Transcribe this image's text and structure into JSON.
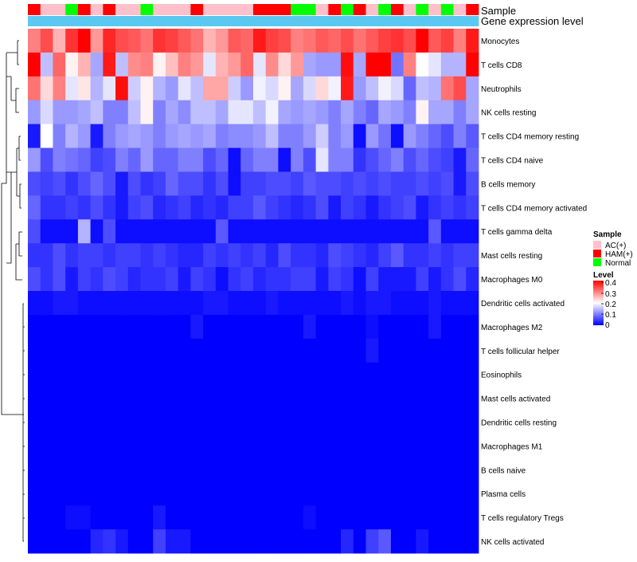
{
  "chart_data": {
    "type": "heatmap",
    "title": "",
    "annotation_labels": [
      "Sample",
      "Gene expression level"
    ],
    "legend": {
      "sample_title": "Sample",
      "sample_entries": [
        {
          "label": "AC(+)",
          "color": "#FFC0CB"
        },
        {
          "label": "HAM(+)",
          "color": "#FF0000"
        },
        {
          "label": "Normal",
          "color": "#00FF00"
        }
      ],
      "level_title": "Level",
      "level_ticks": [
        "0.4",
        "0.3",
        "0.2",
        "0.1",
        "0"
      ],
      "level_range": [
        0,
        0.4
      ],
      "colors": {
        "low": "#0000FF",
        "mid": "#FFFFFF",
        "high": "#FF0000",
        "expression_bar": "#5BC8F2"
      }
    },
    "sample_groups": [
      "HAM(+)",
      "AC(+)",
      "AC(+)",
      "Normal",
      "HAM(+)",
      "AC(+)",
      "HAM(+)",
      "AC(+)",
      "AC(+)",
      "Normal",
      "AC(+)",
      "AC(+)",
      "AC(+)",
      "HAM(+)",
      "AC(+)",
      "AC(+)",
      "AC(+)",
      "AC(+)",
      "HAM(+)",
      "HAM(+)",
      "HAM(+)",
      "Normal",
      "Normal",
      "AC(+)",
      "HAM(+)",
      "Normal",
      "HAM(+)",
      "AC(+)",
      "Normal",
      "HAM(+)",
      "AC(+)",
      "Normal",
      "AC(+)",
      "Normal",
      "AC(+)",
      "HAM(+)"
    ],
    "expression_levels": [
      1,
      1,
      1,
      1,
      1,
      1,
      1,
      1,
      1,
      1,
      1,
      1,
      1,
      1,
      1,
      1,
      1,
      1,
      1,
      1,
      1,
      1,
      1,
      1,
      1,
      1,
      1,
      1,
      1,
      1,
      1,
      1,
      1,
      1,
      1,
      1
    ],
    "rows": [
      {
        "label": "Monocytes",
        "values": [
          0.3,
          0.34,
          0.26,
          0.36,
          0.4,
          0.28,
          0.37,
          0.34,
          0.33,
          0.31,
          0.36,
          0.35,
          0.33,
          0.31,
          0.26,
          0.28,
          0.33,
          0.32,
          0.38,
          0.35,
          0.34,
          0.3,
          0.31,
          0.33,
          0.32,
          0.34,
          0.31,
          0.33,
          0.35,
          0.36,
          0.34,
          0.4,
          0.33,
          0.35,
          0.3,
          0.38
        ]
      },
      {
        "label": "T cells CD8",
        "values": [
          0.4,
          0.15,
          0.32,
          0.21,
          0.26,
          0.13,
          0.38,
          0.15,
          0.29,
          0.3,
          0.21,
          0.25,
          0.3,
          0.28,
          0.18,
          0.26,
          0.28,
          0.32,
          0.18,
          0.29,
          0.23,
          0.28,
          0.13,
          0.12,
          0.12,
          0.39,
          0.13,
          0.4,
          0.4,
          0.09,
          0.3,
          0.2,
          0.18,
          0.14,
          0.14,
          0.4
        ]
      },
      {
        "label": "Neutrophils",
        "values": [
          0.31,
          0.23,
          0.3,
          0.18,
          0.22,
          0.14,
          0.18,
          0.39,
          0.16,
          0.21,
          0.14,
          0.12,
          0.18,
          0.15,
          0.27,
          0.27,
          0.16,
          0.12,
          0.19,
          0.17,
          0.21,
          0.13,
          0.17,
          0.23,
          0.19,
          0.38,
          0.12,
          0.15,
          0.19,
          0.17,
          0.08,
          0.15,
          0.14,
          0.31,
          0.34,
          0.13
        ]
      },
      {
        "label": "NK cells resting",
        "values": [
          0.12,
          0.17,
          0.12,
          0.12,
          0.13,
          0.15,
          0.1,
          0.1,
          0.15,
          0.21,
          0.1,
          0.13,
          0.11,
          0.15,
          0.15,
          0.13,
          0.18,
          0.18,
          0.15,
          0.19,
          0.13,
          0.12,
          0.13,
          0.12,
          0.1,
          0.13,
          0.1,
          0.08,
          0.13,
          0.12,
          0.1,
          0.21,
          0.13,
          0.13,
          0.1,
          0.13
        ]
      },
      {
        "label": "T cells CD4 memory resting",
        "values": [
          0.02,
          0.2,
          0.1,
          0.14,
          0.12,
          0.02,
          0.1,
          0.12,
          0.13,
          0.12,
          0.1,
          0.12,
          0.13,
          0.12,
          0.13,
          0.1,
          0.11,
          0.11,
          0.12,
          0.15,
          0.1,
          0.1,
          0.12,
          0.16,
          0.1,
          0.12,
          0.01,
          0.12,
          0.09,
          0.01,
          0.12,
          0.1,
          0.08,
          0.06,
          0.1,
          0.07
        ]
      },
      {
        "label": "T cells CD4 naive",
        "values": [
          0.12,
          0.06,
          0.1,
          0.09,
          0.08,
          0.05,
          0.06,
          0.1,
          0.08,
          0.12,
          0.08,
          0.08,
          0.1,
          0.1,
          0.06,
          0.08,
          0.01,
          0.08,
          0.1,
          0.1,
          0.01,
          0.1,
          0.06,
          0.18,
          0.1,
          0.1,
          0.04,
          0.06,
          0.08,
          0.1,
          0.06,
          0.08,
          0.06,
          0.05,
          0.02,
          0.08
        ]
      },
      {
        "label": "B cells memory",
        "values": [
          0.06,
          0.05,
          0.06,
          0.04,
          0.06,
          0.08,
          0.06,
          0.02,
          0.06,
          0.04,
          0.05,
          0.08,
          0.06,
          0.06,
          0.04,
          0.06,
          0.01,
          0.05,
          0.05,
          0.06,
          0.06,
          0.05,
          0.07,
          0.06,
          0.06,
          0.05,
          0.06,
          0.05,
          0.06,
          0.05,
          0.05,
          0.06,
          0.05,
          0.06,
          0.02,
          0.06
        ]
      },
      {
        "label": "T cells CD4 memory activated",
        "values": [
          0.08,
          0.04,
          0.04,
          0.05,
          0.04,
          0.06,
          0.04,
          0.02,
          0.05,
          0.06,
          0.03,
          0.04,
          0.05,
          0.03,
          0.04,
          0.03,
          0.05,
          0.05,
          0.07,
          0.05,
          0.04,
          0.03,
          0.04,
          0.06,
          0.02,
          0.05,
          0.04,
          0.02,
          0.04,
          0.05,
          0.06,
          0.02,
          0.04,
          0.05,
          0.04,
          0.05
        ]
      },
      {
        "label": "T cells gamma delta",
        "values": [
          0.06,
          0.01,
          0.01,
          0.01,
          0.14,
          0.01,
          0.06,
          0.01,
          0.01,
          0.01,
          0.01,
          0.01,
          0.01,
          0.01,
          0.01,
          0.07,
          0.01,
          0.01,
          0.01,
          0.01,
          0.01,
          0.01,
          0.01,
          0.01,
          0.01,
          0.01,
          0.01,
          0.01,
          0.01,
          0.01,
          0.01,
          0.01,
          0.07,
          0.01,
          0.01,
          0.01
        ]
      },
      {
        "label": "Mast cells resting",
        "values": [
          0.04,
          0.04,
          0.06,
          0.04,
          0.05,
          0.05,
          0.04,
          0.05,
          0.05,
          0.04,
          0.05,
          0.04,
          0.03,
          0.03,
          0.05,
          0.04,
          0.05,
          0.04,
          0.05,
          0.03,
          0.06,
          0.04,
          0.04,
          0.03,
          0.06,
          0.05,
          0.04,
          0.03,
          0.05,
          0.07,
          0.04,
          0.04,
          0.05,
          0.04,
          0.05,
          0.05
        ]
      },
      {
        "label": "Macrophages M0",
        "values": [
          0.06,
          0.04,
          0.06,
          0.02,
          0.05,
          0.04,
          0.06,
          0.05,
          0.03,
          0.04,
          0.04,
          0.05,
          0.02,
          0.05,
          0.04,
          0.01,
          0.04,
          0.05,
          0.03,
          0.04,
          0.04,
          0.05,
          0.05,
          0.02,
          0.05,
          0.04,
          0.01,
          0.05,
          0.02,
          0.02,
          0.02,
          0.05,
          0.02,
          0.04,
          0.06,
          0.03
        ]
      },
      {
        "label": "Dendritic cells activated",
        "values": [
          0.01,
          0.01,
          0.02,
          0.02,
          0.01,
          0.01,
          0.01,
          0.01,
          0.01,
          0.01,
          0.01,
          0.01,
          0.01,
          0.01,
          0.02,
          0.02,
          0.01,
          0.01,
          0.01,
          0.02,
          0.01,
          0.01,
          0.01,
          0.01,
          0.01,
          0.02,
          0.01,
          0.02,
          0.02,
          0.01,
          0.01,
          0.01,
          0.02,
          0.01,
          0.01,
          0.01
        ]
      },
      {
        "label": "Macrophages M2",
        "values": [
          0.0,
          0.0,
          0.0,
          0.0,
          0.0,
          0.0,
          0.0,
          0.0,
          0.0,
          0.0,
          0.0,
          0.0,
          0.0,
          0.02,
          0.0,
          0.0,
          0.0,
          0.0,
          0.0,
          0.0,
          0.0,
          0.0,
          0.02,
          0.0,
          0.0,
          0.0,
          0.0,
          0.01,
          0.0,
          0.0,
          0.0,
          0.0,
          0.02,
          0.0,
          0.0,
          0.0
        ]
      },
      {
        "label": "T cells follicular helper",
        "values": [
          0.0,
          0.0,
          0.0,
          0.0,
          0.0,
          0.0,
          0.0,
          0.0,
          0.0,
          0.0,
          0.0,
          0.0,
          0.0,
          0.0,
          0.0,
          0.0,
          0.0,
          0.0,
          0.0,
          0.0,
          0.0,
          0.0,
          0.0,
          0.0,
          0.0,
          0.0,
          0.0,
          0.02,
          0.0,
          0.0,
          0.0,
          0.0,
          0.0,
          0.0,
          0.0,
          0.0
        ]
      },
      {
        "label": "Eosinophils",
        "values": [
          0,
          0,
          0,
          0,
          0,
          0,
          0,
          0,
          0,
          0,
          0,
          0,
          0,
          0,
          0,
          0,
          0,
          0,
          0,
          0,
          0,
          0,
          0,
          0,
          0,
          0,
          0,
          0,
          0,
          0,
          0,
          0,
          0,
          0,
          0,
          0
        ]
      },
      {
        "label": "Mast cells activated",
        "values": [
          0,
          0,
          0,
          0,
          0,
          0,
          0,
          0,
          0,
          0,
          0,
          0,
          0,
          0,
          0,
          0,
          0,
          0,
          0,
          0,
          0,
          0,
          0,
          0,
          0,
          0,
          0,
          0,
          0,
          0,
          0,
          0,
          0,
          0,
          0,
          0
        ]
      },
      {
        "label": "Dendritic cells resting",
        "values": [
          0,
          0,
          0,
          0,
          0,
          0,
          0,
          0,
          0,
          0,
          0,
          0,
          0,
          0,
          0,
          0,
          0,
          0,
          0,
          0,
          0,
          0,
          0,
          0,
          0,
          0,
          0,
          0,
          0,
          0,
          0,
          0,
          0,
          0,
          0,
          0
        ]
      },
      {
        "label": "Macrophages M1",
        "values": [
          0,
          0,
          0,
          0,
          0,
          0,
          0,
          0,
          0,
          0,
          0,
          0,
          0,
          0,
          0,
          0,
          0,
          0,
          0,
          0,
          0,
          0,
          0,
          0,
          0,
          0,
          0,
          0,
          0,
          0,
          0,
          0,
          0,
          0,
          0,
          0
        ]
      },
      {
        "label": "B cells naive",
        "values": [
          0,
          0,
          0,
          0,
          0,
          0,
          0,
          0,
          0,
          0,
          0,
          0,
          0,
          0,
          0,
          0,
          0,
          0,
          0,
          0,
          0,
          0,
          0,
          0,
          0,
          0,
          0,
          0,
          0,
          0,
          0,
          0,
          0,
          0,
          0,
          0
        ]
      },
      {
        "label": "Plasma cells",
        "values": [
          0,
          0,
          0,
          0,
          0,
          0,
          0,
          0,
          0,
          0,
          0,
          0,
          0,
          0,
          0,
          0,
          0,
          0,
          0,
          0,
          0,
          0,
          0,
          0,
          0,
          0,
          0,
          0,
          0,
          0,
          0,
          0,
          0,
          0,
          0,
          0
        ]
      },
      {
        "label": "T cells regulatory  Tregs",
        "values": [
          0.0,
          0.0,
          0.0,
          0.01,
          0.01,
          0.0,
          0.0,
          0.0,
          0.0,
          0.0,
          0.02,
          0.0,
          0.0,
          0.0,
          0.0,
          0.0,
          0.0,
          0.0,
          0.0,
          0.0,
          0.0,
          0.0,
          0.01,
          0.0,
          0.0,
          0.0,
          0.0,
          0.0,
          0.0,
          0.0,
          0.0,
          0.0,
          0.0,
          0.0,
          0.0,
          0.0
        ]
      },
      {
        "label": "NK cells activated",
        "values": [
          0.0,
          0.0,
          0.0,
          0.0,
          0.0,
          0.03,
          0.04,
          0.02,
          0.0,
          0.0,
          0.05,
          0.02,
          0.02,
          0.0,
          0.0,
          0.0,
          0.0,
          0.0,
          0.0,
          0.0,
          0.0,
          0.0,
          0.0,
          0.0,
          0.0,
          0.03,
          0.0,
          0.05,
          0.07,
          0.0,
          0.0,
          0.02,
          0.0,
          0.0,
          0.0,
          0.0
        ]
      }
    ]
  }
}
